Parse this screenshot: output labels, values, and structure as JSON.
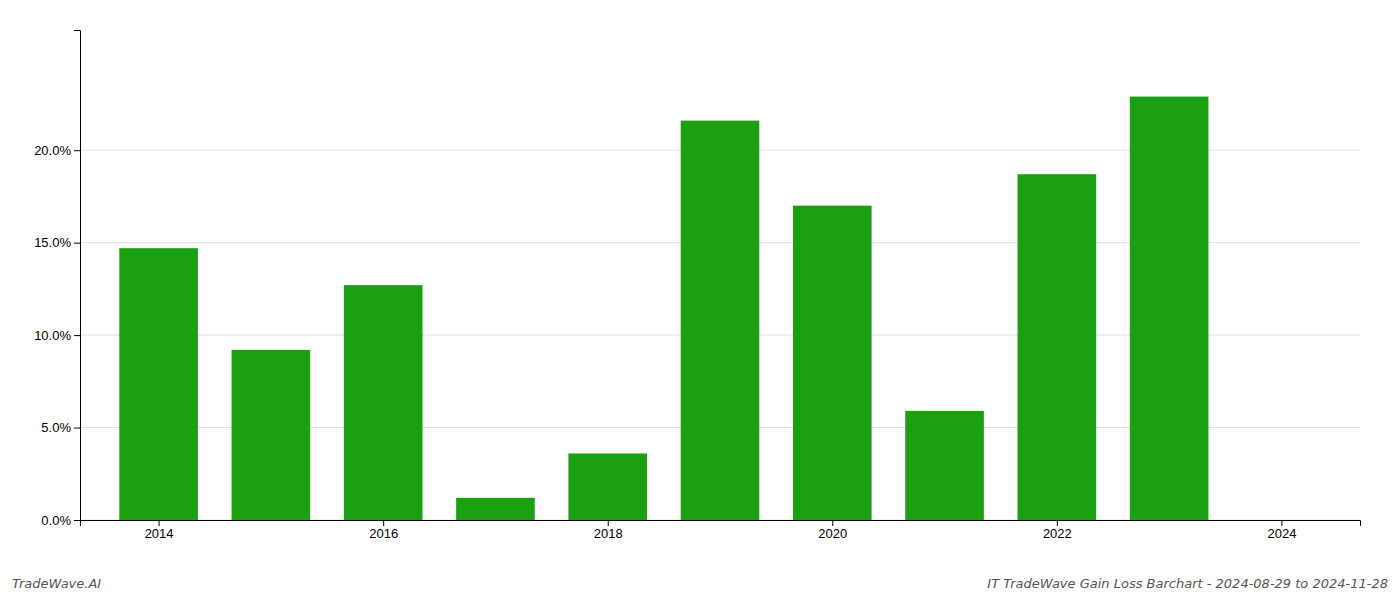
{
  "chart_data": {
    "type": "bar",
    "title": "IT TradeWave Gain Loss Barchart - 2024-08-29 to 2024-11-28",
    "annotations": [
      "TradeWave.AI"
    ],
    "x": [
      2014,
      2015,
      2016,
      2017,
      2018,
      2019,
      2020,
      2021,
      2022,
      2023
    ],
    "values": [
      0.147,
      0.092,
      0.127,
      0.012,
      0.036,
      0.216,
      0.17,
      0.059,
      0.187,
      0.229
    ],
    "color": "#1aa011",
    "xlim": [
      2013.3,
      2024.7
    ],
    "xticks": [
      2014,
      2016,
      2018,
      2020,
      2022,
      2024
    ],
    "ylim": [
      0,
      0.265
    ],
    "yticks": [
      {
        "value": 0.0,
        "label": "0.0%"
      },
      {
        "value": 0.05,
        "label": "5.0%"
      },
      {
        "value": 0.1,
        "label": "10.0%"
      },
      {
        "value": 0.15,
        "label": "15.0%"
      },
      {
        "value": 0.2,
        "label": "20.0%"
      }
    ],
    "grid": true
  }
}
